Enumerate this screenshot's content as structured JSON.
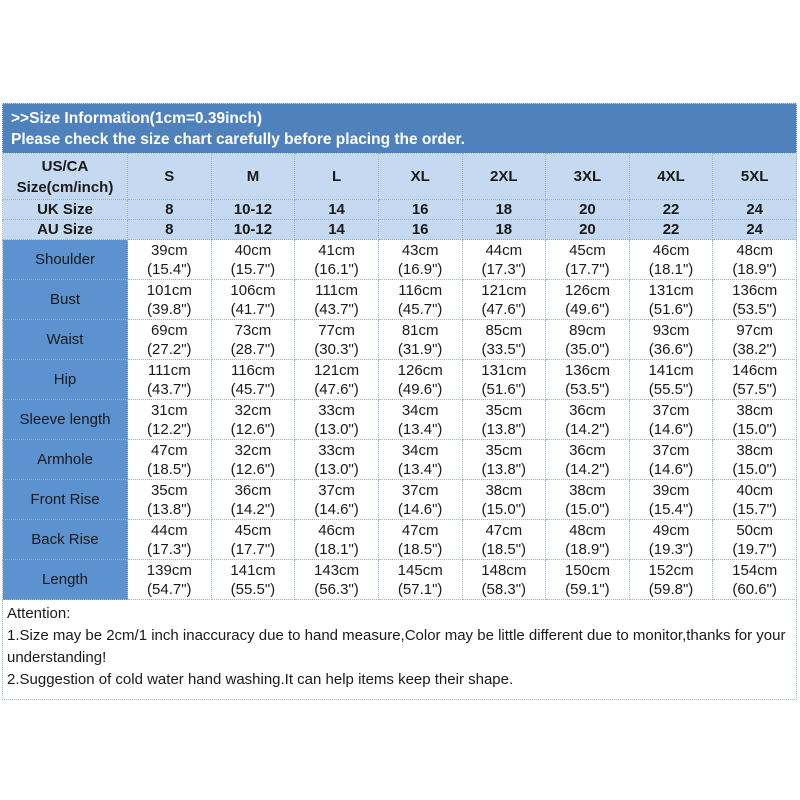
{
  "colors": {
    "title_bar_bg": "#4f81bd",
    "title_text": "#ffffff",
    "header_bg": "#c5d9f1",
    "label_bg": "#5b92cf",
    "border_color": "#95b3d7",
    "cell_text": "#1a1a1a",
    "page_bg": "#ffffff"
  },
  "title_bar": {
    "line1": ">>Size Information(1cm=0.39inch)",
    "line2": "Please check the size chart carefully before placing the order."
  },
  "size_table": {
    "corner_header": {
      "line1": "US/CA",
      "line2": "Size(cm/inch)"
    },
    "size_columns": [
      "S",
      "M",
      "L",
      "XL",
      "2XL",
      "3XL",
      "4XL",
      "5XL"
    ],
    "uk_row": {
      "label": "UK Size",
      "values": [
        "8",
        "10-12",
        "14",
        "16",
        "18",
        "20",
        "22",
        "24"
      ]
    },
    "au_row": {
      "label": "AU Size",
      "values": [
        "8",
        "10-12",
        "14",
        "16",
        "18",
        "20",
        "22",
        "24"
      ]
    },
    "measurement_rows": [
      {
        "label": "Shoulder",
        "cells": [
          {
            "cm": "39cm",
            "inch": "(15.4\")"
          },
          {
            "cm": "40cm",
            "inch": "(15.7\")"
          },
          {
            "cm": "41cm",
            "inch": "(16.1\")"
          },
          {
            "cm": "43cm",
            "inch": "(16.9\")"
          },
          {
            "cm": "44cm",
            "inch": "(17.3\")"
          },
          {
            "cm": "45cm",
            "inch": "(17.7\")"
          },
          {
            "cm": "46cm",
            "inch": "(18.1\")"
          },
          {
            "cm": "48cm",
            "inch": "(18.9\")"
          }
        ]
      },
      {
        "label": "Bust",
        "cells": [
          {
            "cm": "101cm",
            "inch": "(39.8\")"
          },
          {
            "cm": "106cm",
            "inch": "(41.7\")"
          },
          {
            "cm": "111cm",
            "inch": "(43.7\")"
          },
          {
            "cm": "116cm",
            "inch": "(45.7\")"
          },
          {
            "cm": "121cm",
            "inch": "(47.6\")"
          },
          {
            "cm": "126cm",
            "inch": "(49.6\")"
          },
          {
            "cm": "131cm",
            "inch": "(51.6\")"
          },
          {
            "cm": "136cm",
            "inch": "(53.5\")"
          }
        ]
      },
      {
        "label": "Waist",
        "cells": [
          {
            "cm": "69cm",
            "inch": "(27.2\")"
          },
          {
            "cm": "73cm",
            "inch": "(28.7\")"
          },
          {
            "cm": "77cm",
            "inch": "(30.3\")"
          },
          {
            "cm": "81cm",
            "inch": "(31.9\")"
          },
          {
            "cm": "85cm",
            "inch": "(33.5\")"
          },
          {
            "cm": "89cm",
            "inch": "(35.0\")"
          },
          {
            "cm": "93cm",
            "inch": "(36.6\")"
          },
          {
            "cm": "97cm",
            "inch": "(38.2\")"
          }
        ]
      },
      {
        "label": "Hip",
        "cells": [
          {
            "cm": "111cm",
            "inch": "(43.7\")"
          },
          {
            "cm": "116cm",
            "inch": "(45.7\")"
          },
          {
            "cm": "121cm",
            "inch": "(47.6\")"
          },
          {
            "cm": "126cm",
            "inch": "(49.6\")"
          },
          {
            "cm": "131cm",
            "inch": "(51.6\")"
          },
          {
            "cm": "136cm",
            "inch": "(53.5\")"
          },
          {
            "cm": "141cm",
            "inch": "(55.5\")"
          },
          {
            "cm": "146cm",
            "inch": "(57.5\")"
          }
        ]
      },
      {
        "label": "Sleeve length",
        "cells": [
          {
            "cm": "31cm",
            "inch": "(12.2\")"
          },
          {
            "cm": "32cm",
            "inch": "(12.6\")"
          },
          {
            "cm": "33cm",
            "inch": "(13.0\")"
          },
          {
            "cm": "34cm",
            "inch": "(13.4\")"
          },
          {
            "cm": "35cm",
            "inch": "(13.8\")"
          },
          {
            "cm": "36cm",
            "inch": "(14.2\")"
          },
          {
            "cm": "37cm",
            "inch": "(14.6\")"
          },
          {
            "cm": "38cm",
            "inch": "(15.0\")"
          }
        ]
      },
      {
        "label": "Armhole",
        "cells": [
          {
            "cm": "47cm",
            "inch": "(18.5\")"
          },
          {
            "cm": "32cm",
            "inch": "(12.6\")"
          },
          {
            "cm": "33cm",
            "inch": "(13.0\")"
          },
          {
            "cm": "34cm",
            "inch": "(13.4\")"
          },
          {
            "cm": "35cm",
            "inch": "(13.8\")"
          },
          {
            "cm": "36cm",
            "inch": "(14.2\")"
          },
          {
            "cm": "37cm",
            "inch": "(14.6\")"
          },
          {
            "cm": "38cm",
            "inch": "(15.0\")"
          }
        ]
      },
      {
        "label": "Front Rise",
        "cells": [
          {
            "cm": "35cm",
            "inch": "(13.8\")"
          },
          {
            "cm": "36cm",
            "inch": "(14.2\")"
          },
          {
            "cm": "37cm",
            "inch": "(14.6\")"
          },
          {
            "cm": "37cm",
            "inch": "(14.6\")"
          },
          {
            "cm": "38cm",
            "inch": "(15.0\")"
          },
          {
            "cm": "38cm",
            "inch": "(15.0\")"
          },
          {
            "cm": "39cm",
            "inch": "(15.4\")"
          },
          {
            "cm": "40cm",
            "inch": "(15.7\")"
          }
        ]
      },
      {
        "label": "Back Rise",
        "cells": [
          {
            "cm": "44cm",
            "inch": "(17.3\")"
          },
          {
            "cm": "45cm",
            "inch": "(17.7\")"
          },
          {
            "cm": "46cm",
            "inch": "(18.1\")"
          },
          {
            "cm": "47cm",
            "inch": "(18.5\")"
          },
          {
            "cm": "47cm",
            "inch": "(18.5\")"
          },
          {
            "cm": "48cm",
            "inch": "(18.9\")"
          },
          {
            "cm": "49cm",
            "inch": "(19.3\")"
          },
          {
            "cm": "50cm",
            "inch": "(19.7\")"
          }
        ]
      },
      {
        "label": "Length",
        "cells": [
          {
            "cm": "139cm",
            "inch": "(54.7\")"
          },
          {
            "cm": "141cm",
            "inch": "(55.5\")"
          },
          {
            "cm": "143cm",
            "inch": "(56.3\")"
          },
          {
            "cm": "145cm",
            "inch": "(57.1\")"
          },
          {
            "cm": "148cm",
            "inch": "(58.3\")"
          },
          {
            "cm": "150cm",
            "inch": "(59.1\")"
          },
          {
            "cm": "152cm",
            "inch": "(59.8\")"
          },
          {
            "cm": "154cm",
            "inch": "(60.6\")"
          }
        ]
      }
    ]
  },
  "attention": {
    "heading": "Attention:",
    "note1": "1.Size may be 2cm/1 inch inaccuracy due to hand measure,Color may be little different due to monitor,thanks for your understanding!",
    "note2": "2.Suggestion of cold water hand washing.It can help items keep their shape."
  }
}
